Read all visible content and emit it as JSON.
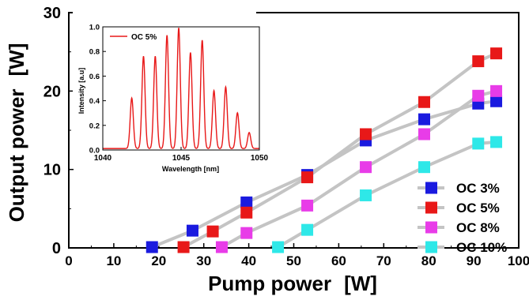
{
  "chart_data": [
    {
      "type": "line",
      "title": "",
      "xlabel": "Pump power",
      "xunit": "[W]",
      "ylabel": "Output power",
      "yunit": "[W]",
      "xlim": [
        0,
        100
      ],
      "ylim": [
        0,
        30
      ],
      "xticks": [
        0,
        10,
        20,
        30,
        40,
        50,
        60,
        70,
        80,
        90,
        100
      ],
      "yticks": [
        0,
        10,
        20,
        30
      ],
      "grid": false,
      "legend_position": "bottom-right",
      "series": [
        {
          "name": "OC 3%",
          "color": "#1a1adf",
          "x": [
            18.5,
            27.5,
            39.5,
            53,
            66,
            79,
            91,
            95
          ],
          "y": [
            0.1,
            2.2,
            5.8,
            9.3,
            13.7,
            16.4,
            18.4,
            18.7
          ]
        },
        {
          "name": "OC 5%",
          "color": "#e81818",
          "x": [
            25.5,
            32,
            39.5,
            53,
            66,
            79,
            91,
            95
          ],
          "y": [
            0.1,
            2.1,
            4.5,
            9.0,
            14.5,
            18.6,
            23.8,
            24.8
          ]
        },
        {
          "name": "OC 8%",
          "color": "#e83ce8",
          "x": [
            34,
            39.5,
            53,
            66,
            79,
            91,
            95
          ],
          "y": [
            0.1,
            1.9,
            5.4,
            10.3,
            14.5,
            19.4,
            20.0
          ]
        },
        {
          "name": "OC 10%",
          "color": "#2ee8e8",
          "x": [
            46.5,
            53,
            66,
            79,
            91,
            95
          ],
          "y": [
            0.1,
            2.3,
            6.7,
            10.3,
            13.3,
            13.5
          ]
        }
      ]
    },
    {
      "type": "line",
      "title": "",
      "xlabel": "Wavelength  [nm]",
      "ylabel": "Intensity  [a.u]",
      "xlim": [
        1040,
        1050
      ],
      "ylim": [
        0,
        1.0
      ],
      "xticks": [
        1040,
        1045,
        1050
      ],
      "yticks": [
        "0.0",
        "0.2",
        "0.4",
        "0.6",
        "0.8",
        "1.0"
      ],
      "legend_position": "top-left",
      "series": [
        {
          "name": "OC 5%",
          "color": "#e81818",
          "peaks": [
            {
              "x": 1041.85,
              "y": 0.41
            },
            {
              "x": 1042.6,
              "y": 0.75
            },
            {
              "x": 1043.35,
              "y": 0.75
            },
            {
              "x": 1044.1,
              "y": 0.92
            },
            {
              "x": 1044.85,
              "y": 0.98
            },
            {
              "x": 1045.6,
              "y": 0.78
            },
            {
              "x": 1046.35,
              "y": 0.88
            },
            {
              "x": 1047.1,
              "y": 0.47
            },
            {
              "x": 1047.85,
              "y": 0.5
            },
            {
              "x": 1048.6,
              "y": 0.29
            },
            {
              "x": 1049.35,
              "y": 0.13
            }
          ]
        }
      ]
    }
  ]
}
